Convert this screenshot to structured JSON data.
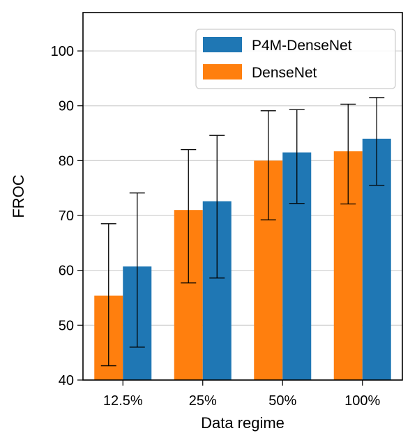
{
  "chart_data": {
    "type": "bar",
    "title": "",
    "xlabel": "Data regime",
    "ylabel": "FROC",
    "ylim": [
      40,
      107
    ],
    "yticks": [
      40,
      50,
      60,
      70,
      80,
      90,
      100
    ],
    "grid": "horizontal",
    "legend_position": "top-right",
    "categories": [
      "12.5%",
      "25%",
      "50%",
      "100%"
    ],
    "series": [
      {
        "name": "DenseNet",
        "color": "#ff7f0e",
        "values": [
          55.4,
          71.0,
          80.0,
          81.7
        ],
        "err_low": [
          42.6,
          57.7,
          69.2,
          72.1
        ],
        "err_high": [
          68.5,
          82.0,
          89.1,
          90.3
        ]
      },
      {
        "name": "P4M-DenseNet",
        "color": "#1f77b4",
        "values": [
          60.7,
          72.6,
          81.5,
          84.0
        ],
        "err_low": [
          46.0,
          58.6,
          72.2,
          75.5
        ],
        "err_high": [
          74.1,
          84.6,
          89.3,
          91.5
        ]
      }
    ],
    "legend_order": [
      "P4M-DenseNet",
      "DenseNet"
    ]
  }
}
